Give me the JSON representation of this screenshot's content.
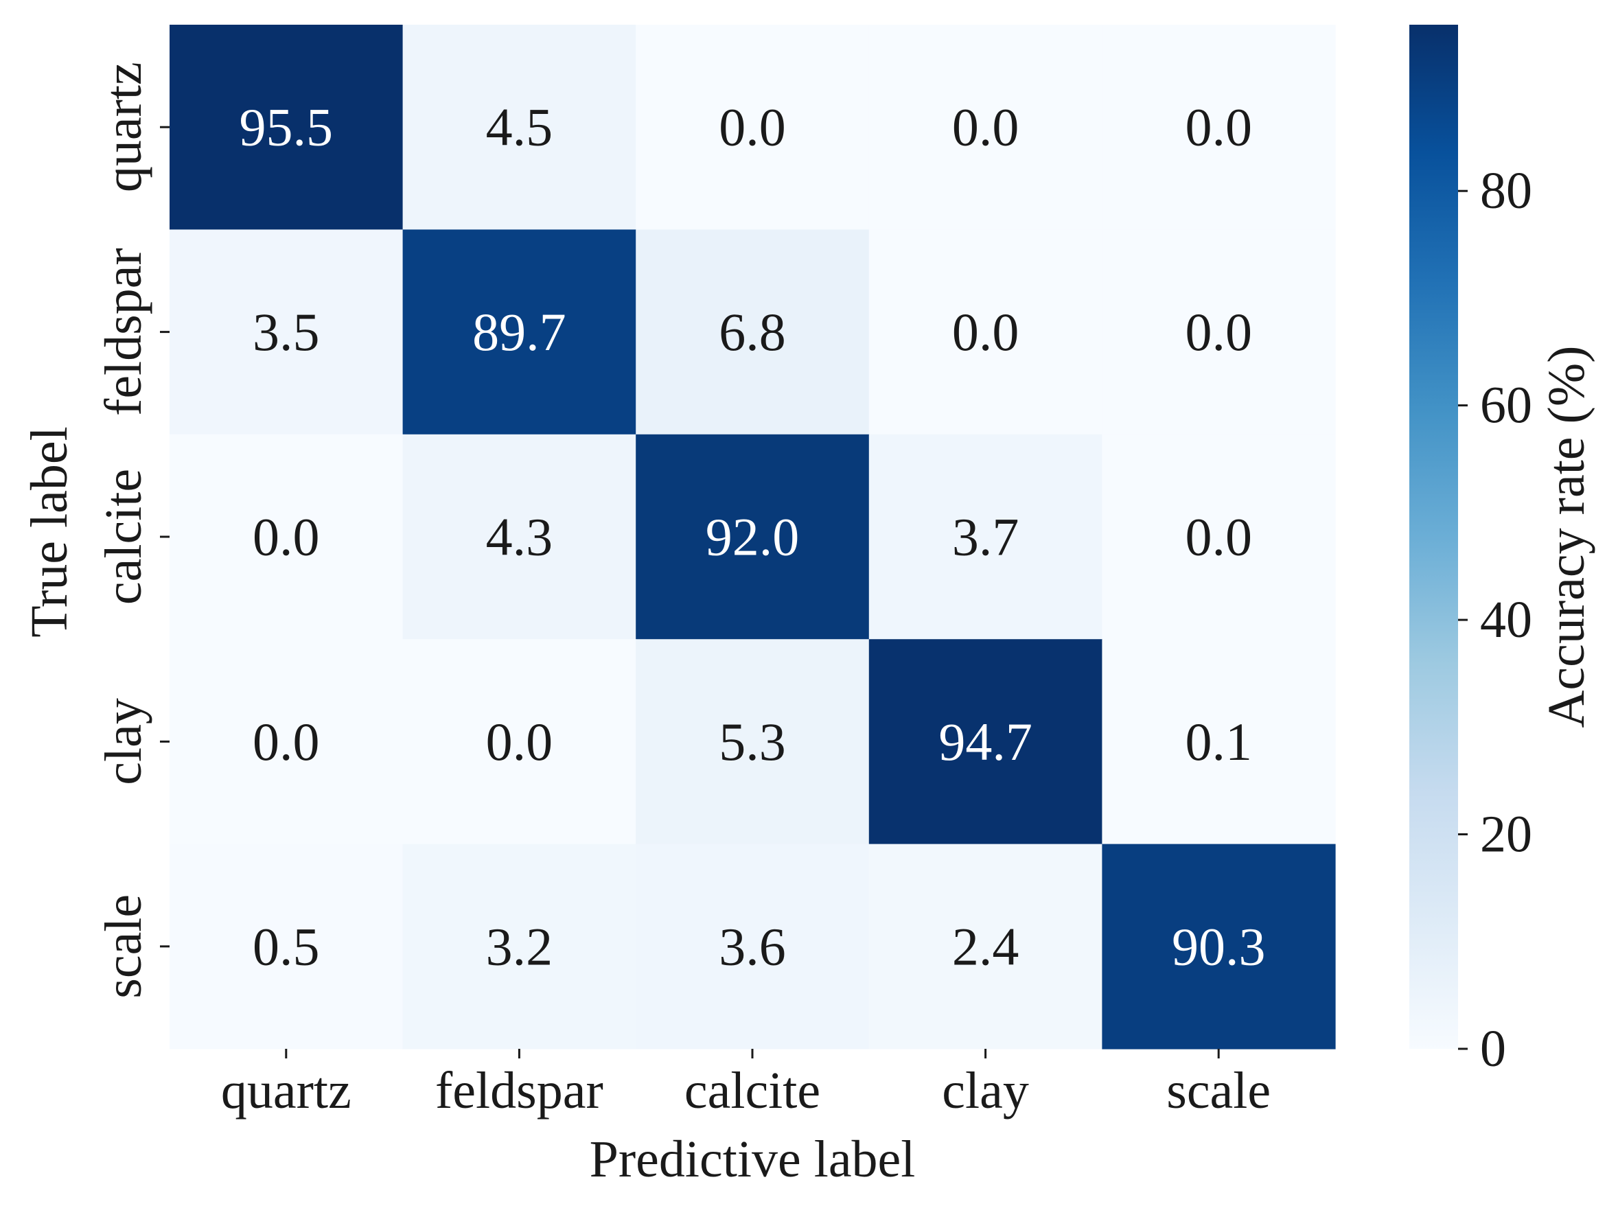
{
  "chart_data": {
    "type": "heatmap",
    "title": "",
    "xlabel": "Predictive label",
    "ylabel": "True label",
    "x_categories": [
      "quartz",
      "feldspar",
      "calcite",
      "clay",
      "scale"
    ],
    "y_categories": [
      "quartz",
      "feldspar",
      "calcite",
      "clay",
      "scale"
    ],
    "values": [
      [
        95.5,
        4.5,
        0.0,
        0.0,
        0.0
      ],
      [
        3.5,
        89.7,
        6.8,
        0.0,
        0.0
      ],
      [
        0.0,
        4.3,
        92.0,
        3.7,
        0.0
      ],
      [
        0.0,
        0.0,
        5.3,
        94.7,
        0.1
      ],
      [
        0.5,
        3.2,
        3.6,
        2.4,
        90.3
      ]
    ],
    "value_format": "0.0",
    "colorbar": {
      "label": "Accuracy rate (%)",
      "range": [
        0,
        95.5
      ],
      "ticks": [
        0,
        20,
        40,
        60,
        80
      ],
      "colormap": "Blues"
    },
    "grid": false
  }
}
